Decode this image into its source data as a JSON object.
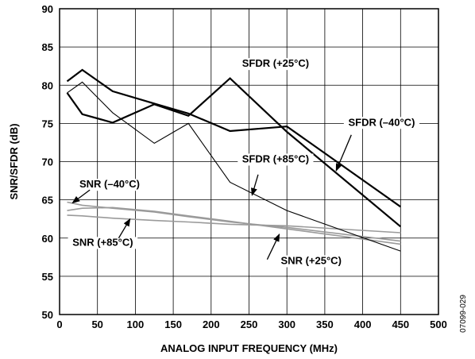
{
  "chart_data": {
    "type": "line",
    "title": "",
    "xlabel": "ANALOG INPUT FREQUENCY (MHz)",
    "ylabel": "SNR/SFDR (dB)",
    "xlim": [
      0,
      500
    ],
    "ylim": [
      50,
      90
    ],
    "xticks": [
      0,
      50,
      100,
      150,
      200,
      250,
      300,
      350,
      400,
      450,
      500
    ],
    "yticks": [
      50,
      55,
      60,
      65,
      70,
      75,
      80,
      85,
      90
    ],
    "grid": true,
    "series": [
      {
        "name": "SFDR (+25°C)",
        "color": "#000000",
        "width": 2.2,
        "points": [
          [
            10,
            79.0
          ],
          [
            30,
            76.2
          ],
          [
            70,
            75.1
          ],
          [
            125,
            77.5
          ],
          [
            170,
            76.0
          ],
          [
            225,
            80.9
          ],
          [
            300,
            73.9
          ],
          [
            450,
            61.5
          ]
        ]
      },
      {
        "name": "SFDR (–40°C)",
        "color": "#000000",
        "width": 2.2,
        "points": [
          [
            10,
            80.5
          ],
          [
            30,
            82.0
          ],
          [
            70,
            79.2
          ],
          [
            125,
            77.6
          ],
          [
            170,
            76.3
          ],
          [
            225,
            74.0
          ],
          [
            300,
            74.6
          ],
          [
            450,
            64.1
          ]
        ]
      },
      {
        "name": "SFDR (+85°C)",
        "color": "#000000",
        "width": 1.1,
        "points": [
          [
            10,
            79.0
          ],
          [
            30,
            80.4
          ],
          [
            70,
            76.4
          ],
          [
            125,
            72.4
          ],
          [
            170,
            75.0
          ],
          [
            225,
            67.3
          ],
          [
            300,
            63.6
          ],
          [
            450,
            58.3
          ]
        ]
      },
      {
        "name": "SNR (–40°C)",
        "color": "#9a9a9a",
        "width": 1.6,
        "points": [
          [
            10,
            64.7
          ],
          [
            30,
            64.3
          ],
          [
            70,
            63.9
          ],
          [
            125,
            63.4
          ],
          [
            170,
            62.8
          ],
          [
            225,
            62.1
          ],
          [
            300,
            61.4
          ],
          [
            450,
            59.6
          ]
        ]
      },
      {
        "name": "SNR (+85°C)",
        "color": "#9a9a9a",
        "width": 1.6,
        "points": [
          [
            10,
            63.0
          ],
          [
            30,
            62.9
          ],
          [
            70,
            62.6
          ],
          [
            125,
            62.3
          ],
          [
            170,
            62.1
          ],
          [
            225,
            61.8
          ],
          [
            300,
            61.6
          ],
          [
            450,
            60.7
          ]
        ]
      },
      {
        "name": "SNR (+25°C)",
        "color": "#9a9a9a",
        "width": 1.6,
        "points": [
          [
            10,
            63.6
          ],
          [
            30,
            63.9
          ],
          [
            70,
            64.0
          ],
          [
            125,
            63.5
          ],
          [
            170,
            62.9
          ],
          [
            225,
            62.2
          ],
          [
            300,
            61.2
          ],
          [
            450,
            59.2
          ]
        ]
      }
    ],
    "annotations": [
      {
        "text": "SFDR (+25°C)",
        "x": 285,
        "y": 82.4,
        "anchor": "middle",
        "arrow": null
      },
      {
        "text": "SFDR (–40°C)",
        "x": 425,
        "y": 74.7,
        "anchor": "middle",
        "arrow": {
          "from": [
            385,
            73.5
          ],
          "to": [
            365,
            68.8
          ]
        }
      },
      {
        "text": "SFDR (+85°C)",
        "x": 285,
        "y": 69.9,
        "anchor": "middle",
        "arrow": {
          "from": [
            262,
            68.3
          ],
          "to": [
            254,
            65.6
          ]
        }
      },
      {
        "text": "SNR (–40°C)",
        "x": 66,
        "y": 66.6,
        "anchor": "middle",
        "arrow": {
          "from": [
            40,
            66.3
          ],
          "to": [
            17,
            64.6
          ]
        }
      },
      {
        "text": "SNR (+85°C)",
        "x": 57,
        "y": 59.0,
        "anchor": "middle",
        "arrow": {
          "from": [
            78,
            60.0
          ],
          "to": [
            93,
            62.5
          ]
        }
      },
      {
        "text": "SNR (+25°C)",
        "x": 332,
        "y": 56.6,
        "anchor": "middle",
        "arrow": {
          "from": [
            274,
            57.2
          ],
          "to": [
            290,
            60.5
          ]
        }
      }
    ],
    "figure_id": "07099-029"
  }
}
